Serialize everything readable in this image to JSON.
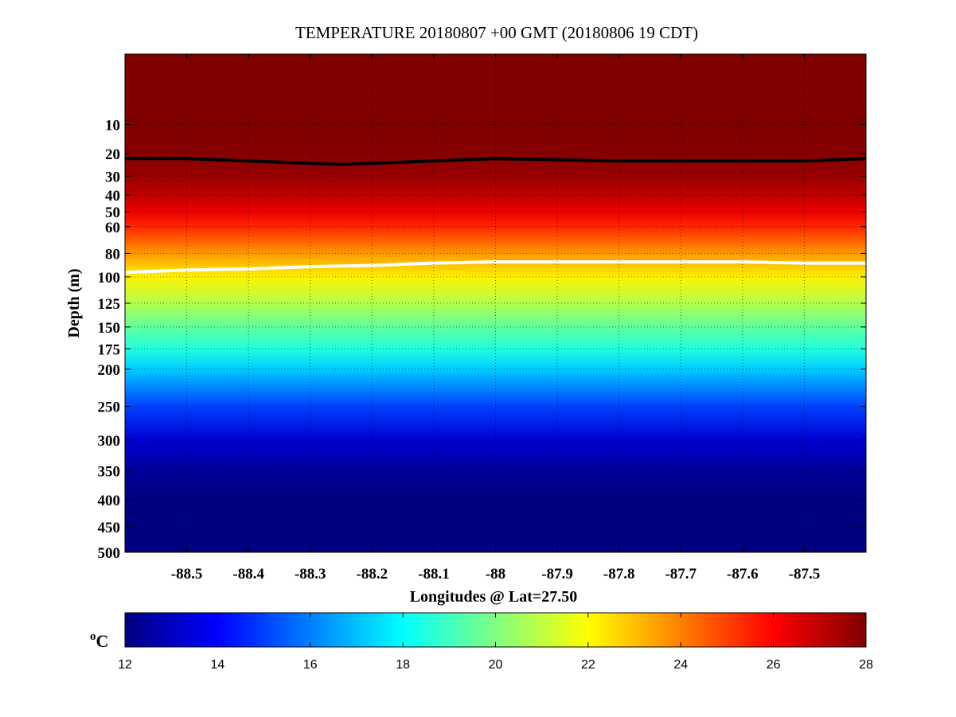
{
  "chart_data": {
    "type": "heatmap",
    "title": "TEMPERATURE 20180807 +00 GMT (20180806 19 CDT)",
    "xlabel": "Longitudes @ Lat=27.50",
    "ylabel": "Depth (m)",
    "xlim": [
      -88.6,
      -87.4
    ],
    "ylim": [
      0,
      500
    ],
    "y_scale": "sqrt",
    "y_reversed": true,
    "x_ticks": [
      -88.5,
      -88.4,
      -88.3,
      -88.2,
      -88.1,
      -88,
      -87.9,
      -87.8,
      -87.7,
      -87.6,
      -87.5
    ],
    "x_tick_labels": [
      "-88.5",
      "-88.4",
      "-88.3",
      "-88.2",
      "-88.1",
      "-88",
      "-87.9",
      "-87.8",
      "-87.7",
      "-87.6",
      "-87.5"
    ],
    "y_ticks": [
      10,
      20,
      30,
      40,
      50,
      60,
      80,
      100,
      125,
      150,
      175,
      200,
      250,
      300,
      350,
      400,
      450,
      500
    ],
    "y_tick_labels": [
      "10",
      "20",
      "30",
      "40",
      "50",
      "60",
      "80",
      "100",
      "125",
      "150",
      "175",
      "200",
      "250",
      "300",
      "350",
      "400",
      "450",
      "500"
    ],
    "grid": true,
    "colormap": "jet",
    "colorbar": {
      "unit": "oC",
      "range": [
        12,
        28
      ],
      "ticks": [
        12,
        14,
        16,
        18,
        20,
        22,
        24,
        26,
        28
      ],
      "tick_labels": [
        "12",
        "14",
        "16",
        "18",
        "20",
        "22",
        "24",
        "26",
        "28"
      ]
    },
    "temperature_profile": {
      "depth_m": [
        0,
        10,
        20,
        30,
        40,
        50,
        60,
        70,
        80,
        90,
        100,
        125,
        150,
        175,
        200,
        250,
        300,
        350,
        400,
        450,
        500
      ],
      "temp_c": [
        28.0,
        28.0,
        27.9,
        27.6,
        27.0,
        26.3,
        25.4,
        24.5,
        23.6,
        22.9,
        22.2,
        20.8,
        19.5,
        18.5,
        17.2,
        15.0,
        13.3,
        12.4,
        12.0,
        12.0,
        12.0
      ]
    },
    "contours": [
      {
        "level_c": 28,
        "color": "#000000",
        "lon": [
          -88.6,
          -88.5,
          -88.4,
          -88.3,
          -88.25,
          -88.2,
          -88.1,
          -88.0,
          -87.9,
          -87.8,
          -87.7,
          -87.6,
          -87.5,
          -87.4
        ],
        "depth_m": [
          22,
          22,
          23,
          24,
          24.5,
          24,
          23,
          22,
          22.5,
          23,
          23,
          23,
          23,
          22
        ]
      },
      {
        "level_c": 22,
        "color": "#ffffff",
        "lon": [
          -88.6,
          -88.5,
          -88.4,
          -88.3,
          -88.2,
          -88.1,
          -88.0,
          -87.9,
          -87.8,
          -87.7,
          -87.6,
          -87.5,
          -87.4
        ],
        "depth_m": [
          96,
          94,
          93,
          91,
          90,
          88,
          87,
          87,
          87,
          87,
          87,
          88,
          88
        ]
      }
    ]
  }
}
